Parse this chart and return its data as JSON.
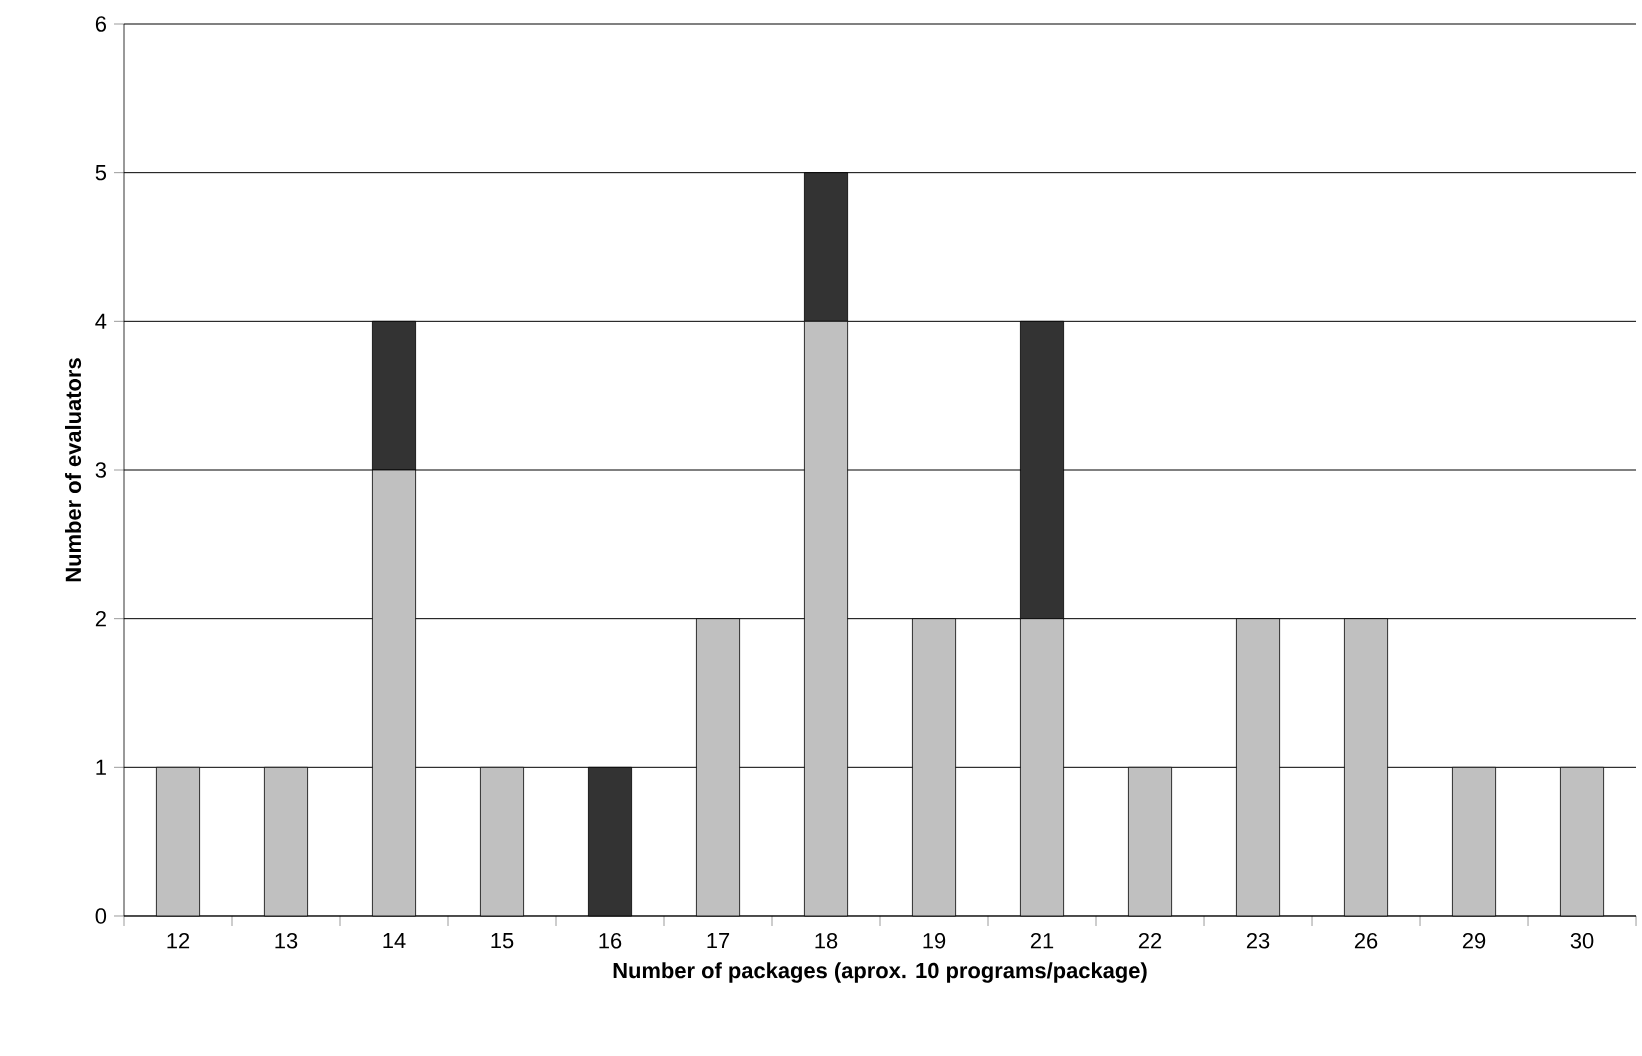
{
  "chart_data": {
    "type": "bar",
    "stacked": true,
    "xlabel": "Number of packages (aprox. 10 programs/package)",
    "ylabel": "Number of evaluators",
    "categories": [
      "12",
      "13",
      "14",
      "15",
      "16",
      "17",
      "18",
      "19",
      "21",
      "22",
      "23",
      "26",
      "29",
      "30"
    ],
    "series": [
      {
        "color": "#c0c0c0",
        "values": [
          1,
          1,
          3,
          1,
          null,
          2,
          4,
          2,
          2,
          1,
          2,
          2,
          1,
          1
        ]
      },
      {
        "color": "#333333",
        "values": [
          null,
          null,
          1,
          null,
          1,
          null,
          1,
          null,
          2,
          null,
          null,
          null,
          null,
          null
        ]
      }
    ],
    "ylim": [
      0,
      6
    ],
    "yticks": [
      0,
      1,
      2,
      3,
      4,
      5,
      6
    ],
    "grid": "y"
  }
}
